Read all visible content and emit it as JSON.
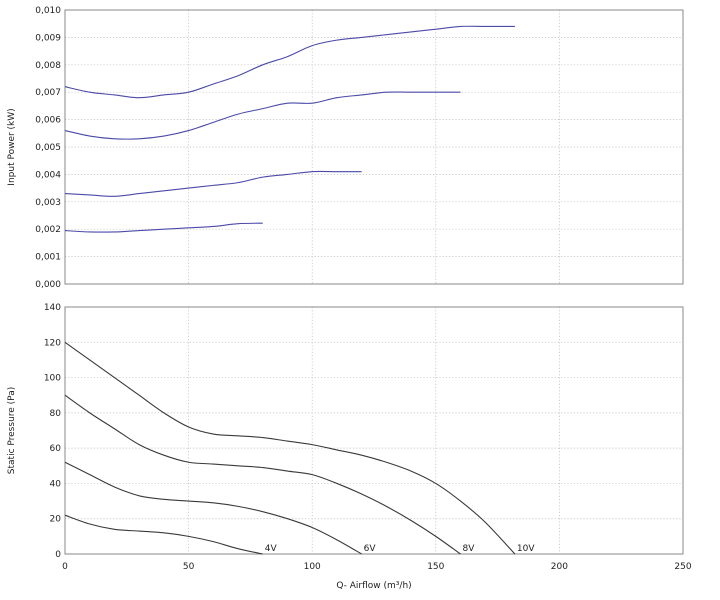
{
  "chart_data": [
    {
      "type": "line",
      "title": "",
      "xlabel": "",
      "ylabel": "Input Power (kW)",
      "xlim": [
        0,
        250
      ],
      "ylim": [
        0,
        0.01
      ],
      "grid": true,
      "line_color": "#4a4aa8",
      "xticks": [
        0,
        50,
        100,
        150,
        200,
        250
      ],
      "xtick_labels": [],
      "yticks": [
        0,
        0.001,
        0.002,
        0.003,
        0.004,
        0.005,
        0.006,
        0.007,
        0.008,
        0.009,
        0.01
      ],
      "ytick_labels": [
        "0,000",
        "0,001",
        "0,002",
        "0,003",
        "0,004",
        "0,005",
        "0,006",
        "0,007",
        "0,008",
        "0,009",
        "0,010"
      ],
      "series": [
        {
          "label": "",
          "x": [
            0,
            10,
            20,
            30,
            40,
            50,
            60,
            70,
            80
          ],
          "y": [
            0.00195,
            0.0019,
            0.0019,
            0.00195,
            0.002,
            0.00205,
            0.0021,
            0.0022,
            0.00222
          ]
        },
        {
          "label": "",
          "x": [
            0,
            10,
            20,
            30,
            40,
            50,
            60,
            70,
            80,
            90,
            100,
            110,
            120
          ],
          "y": [
            0.0033,
            0.00325,
            0.0032,
            0.0033,
            0.0034,
            0.0035,
            0.0036,
            0.0037,
            0.0039,
            0.004,
            0.0041,
            0.0041,
            0.0041
          ]
        },
        {
          "label": "",
          "x": [
            0,
            10,
            20,
            30,
            40,
            50,
            60,
            70,
            80,
            90,
            100,
            110,
            120,
            130,
            140,
            150,
            160
          ],
          "y": [
            0.0056,
            0.0054,
            0.0053,
            0.0053,
            0.0054,
            0.0056,
            0.0059,
            0.0062,
            0.0064,
            0.0066,
            0.0066,
            0.0068,
            0.0069,
            0.007,
            0.007,
            0.007,
            0.007
          ]
        },
        {
          "label": "",
          "x": [
            0,
            10,
            20,
            30,
            40,
            50,
            60,
            70,
            80,
            90,
            100,
            110,
            120,
            130,
            140,
            150,
            160,
            170,
            182
          ],
          "y": [
            0.0072,
            0.007,
            0.0069,
            0.0068,
            0.0069,
            0.007,
            0.0073,
            0.0076,
            0.008,
            0.0083,
            0.0087,
            0.0089,
            0.009,
            0.0091,
            0.0092,
            0.0093,
            0.0094,
            0.0094,
            0.0094
          ]
        }
      ]
    },
    {
      "type": "line",
      "title": "",
      "xlabel": "Q- Airflow (m³/h)",
      "ylabel": "Static Pressure (Pa)",
      "xlim": [
        0,
        250
      ],
      "ylim": [
        0,
        140
      ],
      "grid": true,
      "line_color": "#3a3a3a",
      "xticks": [
        0,
        50,
        100,
        150,
        200,
        250
      ],
      "xtick_labels": [
        "0",
        "50",
        "100",
        "150",
        "200",
        "250"
      ],
      "yticks": [
        0,
        20,
        40,
        60,
        80,
        100,
        120,
        140
      ],
      "ytick_labels": [
        "0",
        "20",
        "40",
        "60",
        "80",
        "100",
        "120",
        "140"
      ],
      "series": [
        {
          "label": "4V",
          "x": [
            0,
            10,
            20,
            30,
            40,
            50,
            60,
            70,
            80
          ],
          "y": [
            22,
            17,
            14,
            13,
            12,
            10,
            7,
            3,
            0
          ]
        },
        {
          "label": "6V",
          "x": [
            0,
            10,
            20,
            30,
            40,
            50,
            60,
            70,
            80,
            90,
            100,
            110,
            120
          ],
          "y": [
            52,
            45,
            38,
            33,
            31,
            30,
            29,
            27,
            24,
            20,
            15,
            8,
            0
          ]
        },
        {
          "label": "8V",
          "x": [
            0,
            10,
            20,
            30,
            40,
            50,
            60,
            70,
            80,
            90,
            100,
            110,
            120,
            130,
            140,
            150,
            160
          ],
          "y": [
            90,
            80,
            71,
            62,
            56,
            52,
            51,
            50,
            49,
            47,
            45,
            40,
            34,
            27,
            19,
            10,
            0
          ]
        },
        {
          "label": "10V",
          "x": [
            0,
            10,
            20,
            30,
            40,
            50,
            60,
            70,
            80,
            90,
            100,
            110,
            120,
            130,
            140,
            150,
            160,
            170,
            182
          ],
          "y": [
            120,
            110,
            100,
            90,
            80,
            72,
            68,
            67,
            66,
            64,
            62,
            59,
            56,
            52,
            47,
            40,
            30,
            18,
            0
          ]
        }
      ]
    }
  ]
}
